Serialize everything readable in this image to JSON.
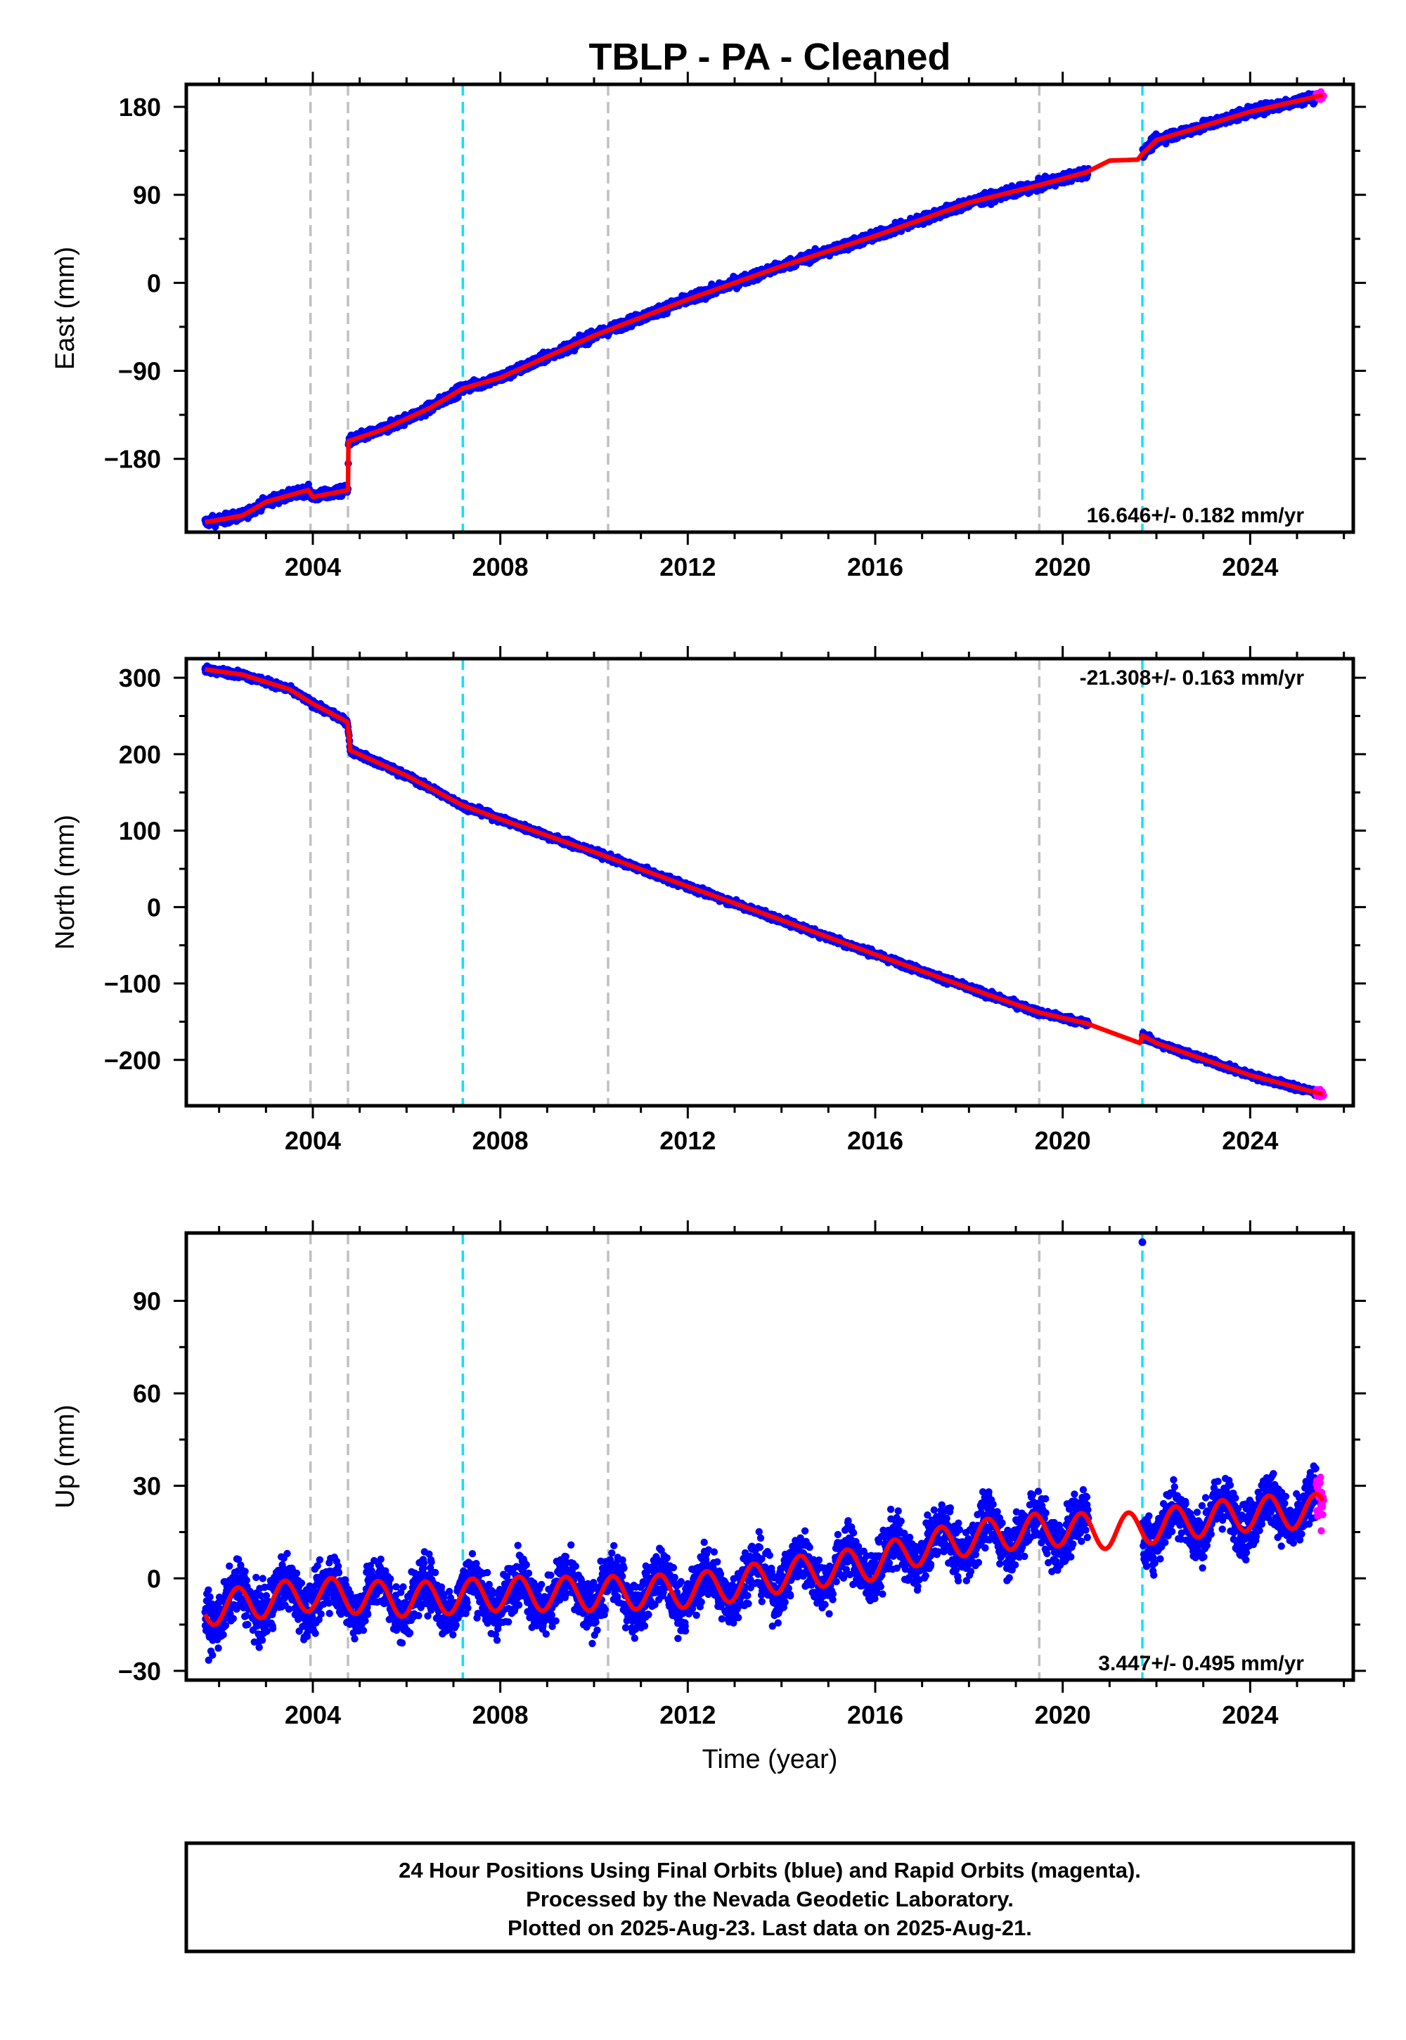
{
  "title": "TBLP  - PA - Cleaned",
  "colors": {
    "final": "#0000ff",
    "rapid": "#ff00ff",
    "model": "#ff0000",
    "equip_change": "#c0c0c0",
    "earthquake": "#00e5ff"
  },
  "xlabel": "Time (year)",
  "footer": {
    "line1": "24 Hour Positions Using Final Orbits (blue) and Rapid Orbits (magenta).",
    "line2": "Processed by the Nevada Geodetic Laboratory.",
    "line3": "Plotted on 2025-Aug-23. Last data on 2025-Aug-21."
  },
  "chart_data": [
    {
      "type": "scatter",
      "component": "east",
      "ylabel": "East (mm)",
      "xlim": [
        2001.3,
        2026.2
      ],
      "ylim": [
        -255,
        203
      ],
      "yticks": [
        -180,
        -90,
        0,
        90,
        180
      ],
      "xticks": [
        2004,
        2008,
        2012,
        2016,
        2020,
        2024
      ],
      "rate_label": "16.646+/- 0.182 mm/yr",
      "rate_position": "bottom-right",
      "grey_dashed_lines": [
        2003.95,
        2004.75,
        2010.3,
        2019.5
      ],
      "cyan_dashed_lines": [
        2007.2,
        2021.7
      ],
      "model_curve": [
        [
          2001.7,
          -245
        ],
        [
          2002.5,
          -238
        ],
        [
          2003.0,
          -224
        ],
        [
          2003.9,
          -212
        ],
        [
          2004.0,
          -219
        ],
        [
          2004.75,
          -212
        ],
        [
          2004.76,
          -162
        ],
        [
          2005.5,
          -150
        ],
        [
          2006.5,
          -128
        ],
        [
          2007.2,
          -108
        ],
        [
          2008.0,
          -97
        ],
        [
          2010.0,
          -54
        ],
        [
          2012.0,
          -17
        ],
        [
          2014.0,
          17
        ],
        [
          2016.0,
          48
        ],
        [
          2018.0,
          82
        ],
        [
          2019.5,
          100
        ],
        [
          2020.5,
          113
        ],
        [
          2021.0,
          125
        ],
        [
          2021.6,
          126
        ],
        [
          2021.7,
          132
        ],
        [
          2022.0,
          146
        ],
        [
          2024.0,
          175
        ],
        [
          2025.55,
          192
        ]
      ],
      "data_gap": [
        2020.55,
        2021.7
      ],
      "noise_mm": 3.5,
      "outliers": []
    },
    {
      "type": "scatter",
      "component": "north",
      "ylabel": "North (mm)",
      "xlim": [
        2001.3,
        2026.2
      ],
      "ylim": [
        -260,
        325
      ],
      "yticks": [
        -200,
        -100,
        0,
        100,
        200,
        300
      ],
      "xticks": [
        2004,
        2008,
        2012,
        2016,
        2020,
        2024
      ],
      "rate_label": "-21.308+/- 0.163 mm/yr",
      "rate_position": "top-right",
      "grey_dashed_lines": [
        2003.95,
        2004.75,
        2010.3,
        2019.5
      ],
      "cyan_dashed_lines": [
        2007.2,
        2021.7
      ],
      "model_curve": [
        [
          2001.7,
          311
        ],
        [
          2002.5,
          304
        ],
        [
          2003.5,
          285
        ],
        [
          2004.0,
          266
        ],
        [
          2004.74,
          242
        ],
        [
          2004.8,
          205
        ],
        [
          2006.0,
          172
        ],
        [
          2007.2,
          133
        ],
        [
          2008.0,
          115
        ],
        [
          2010.0,
          72
        ],
        [
          2012.0,
          27
        ],
        [
          2014.0,
          -17
        ],
        [
          2016.0,
          -62
        ],
        [
          2018.0,
          -106
        ],
        [
          2019.5,
          -138
        ],
        [
          2020.5,
          -152
        ],
        [
          2021.65,
          -178
        ],
        [
          2021.7,
          -168
        ],
        [
          2022.0,
          -178
        ],
        [
          2024.0,
          -220
        ],
        [
          2025.55,
          -245
        ]
      ],
      "data_gap": [
        2020.55,
        2021.7
      ],
      "noise_mm": 3,
      "outliers": []
    },
    {
      "type": "scatter",
      "component": "up",
      "ylabel": "Up (mm)",
      "xlim": [
        2001.3,
        2026.2
      ],
      "ylim": [
        -33,
        112
      ],
      "yticks": [
        -30,
        0,
        30,
        60,
        90
      ],
      "xticks": [
        2004,
        2008,
        2012,
        2016,
        2020,
        2024
      ],
      "rate_label": "3.447+/- 0.495 mm/yr",
      "rate_position": "bottom-right",
      "grey_dashed_lines": [
        2003.95,
        2004.75,
        2010.3,
        2019.5
      ],
      "cyan_dashed_lines": [
        2007.2,
        2021.7
      ],
      "model_curve": [
        [
          2001.7,
          -10
        ],
        [
          2004.0,
          -5
        ],
        [
          2006.0,
          -7
        ],
        [
          2008.0,
          -5
        ],
        [
          2010.0,
          -5
        ],
        [
          2012.0,
          -4
        ],
        [
          2013.0,
          -2
        ],
        [
          2014.0,
          1
        ],
        [
          2015.0,
          3
        ],
        [
          2016.0,
          5
        ],
        [
          2017.0,
          10
        ],
        [
          2018.0,
          13
        ],
        [
          2019.0,
          15
        ],
        [
          2020.0,
          16
        ],
        [
          2021.0,
          15
        ],
        [
          2022.0,
          17
        ],
        [
          2023.0,
          19
        ],
        [
          2024.0,
          21
        ],
        [
          2025.55,
          22
        ]
      ],
      "seasonal_amplitude_mm": 5.5,
      "data_gap": [
        2020.55,
        2021.7
      ],
      "noise_mm": 6,
      "outliers": [
        [
          2021.7,
          109
        ]
      ]
    }
  ]
}
